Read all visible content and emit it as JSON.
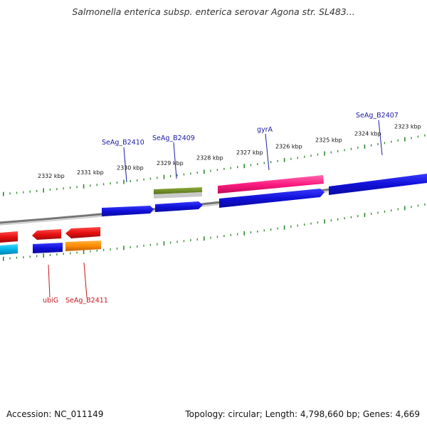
{
  "title": "Salmonella enterica subsp. enterica serovar Agona str. SL483...",
  "footer": {
    "accession": "Accession: NC_011149",
    "summary": "Topology: circular; Length: 4,798,660 bp; Genes: 4,669"
  },
  "ticks": [
    {
      "label": "2332 kbp"
    },
    {
      "label": "2331 kbp"
    },
    {
      "label": "2330 kbp"
    },
    {
      "label": "2329 kbp"
    },
    {
      "label": "2328 kbp"
    },
    {
      "label": "2327 kbp"
    },
    {
      "label": "2326 kbp"
    },
    {
      "label": "2325 kbp"
    },
    {
      "label": "2324 kbp"
    },
    {
      "label": "2323 kbp"
    }
  ],
  "gene_labels": {
    "b2410": "SeAg_B2410",
    "b2409": "SeAg_B2409",
    "gyrA": "gyrA",
    "b2407": "SeAg_B2407",
    "ubiG": "ubiG",
    "b2411": "SeAg_B2411"
  },
  "colors": {
    "forward_cds": "#1a1ae6",
    "reverse_cds": "#e61a1a",
    "gyrA": "#ff2a8c",
    "olive": "#6b8e23",
    "orange": "#ff8c00",
    "cyan": "#00b4e6",
    "ticks": "#2e8b2e",
    "backbone": "#808080"
  }
}
